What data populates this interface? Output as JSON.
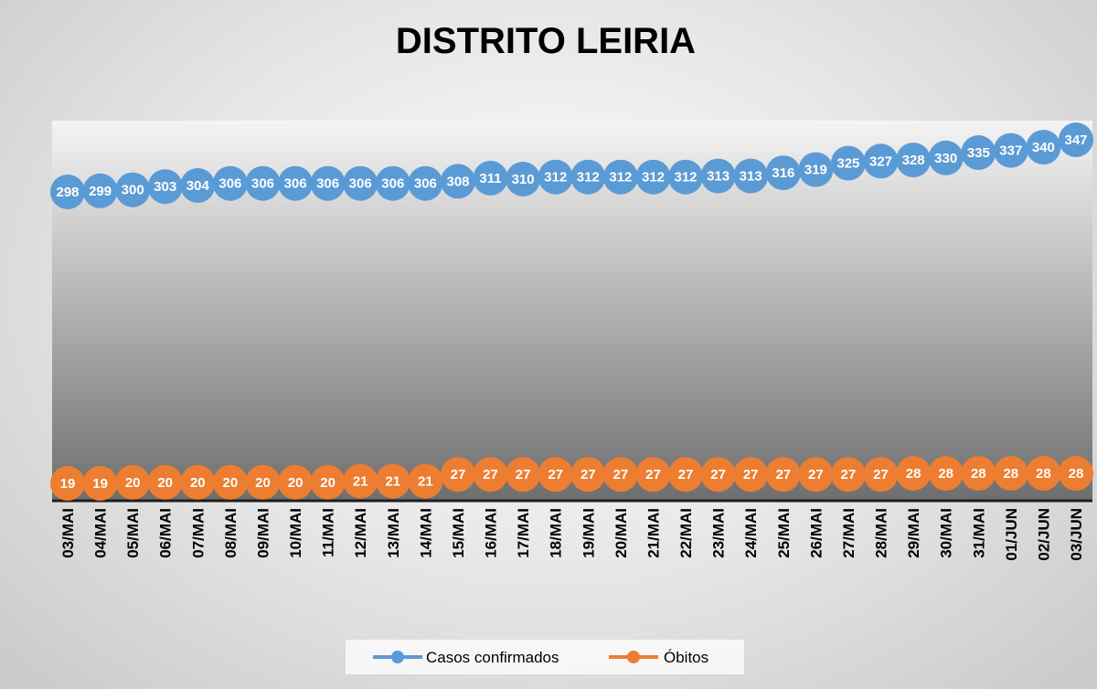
{
  "chart_data": {
    "type": "line",
    "title": "DISTRITO LEIRIA",
    "xlabel": "",
    "ylabel": "",
    "categories": [
      "03/MAI",
      "04/MAI",
      "05/MAI",
      "06/MAI",
      "07/MAI",
      "08/MAI",
      "09/MAI",
      "10/MAI",
      "11/MAI",
      "12/MAI",
      "13/MAI",
      "14/MAI",
      "15/MAI",
      "16/MAI",
      "17/MAI",
      "18/MAI",
      "19/MAI",
      "20/MAI",
      "21/MAI",
      "22/MAI",
      "23/MAI",
      "24/MAI",
      "25/MAI",
      "26/MAI",
      "27/MAI",
      "28/MAI",
      "29/MAI",
      "30/MAI",
      "31/MAI",
      "01/JUN",
      "02/JUN",
      "03/JUN"
    ],
    "series": [
      {
        "name": "Casos confirmados",
        "color": "#5b9bd5",
        "values": [
          298,
          299,
          300,
          303,
          304,
          306,
          306,
          306,
          306,
          306,
          306,
          306,
          308,
          311,
          310,
          312,
          312,
          312,
          312,
          312,
          313,
          313,
          316,
          319,
          325,
          327,
          328,
          330,
          335,
          337,
          340,
          347
        ]
      },
      {
        "name": "Óbitos",
        "color": "#ed7d31",
        "values": [
          19,
          19,
          20,
          20,
          20,
          20,
          20,
          20,
          20,
          21,
          21,
          21,
          27,
          27,
          27,
          27,
          27,
          27,
          27,
          27,
          27,
          27,
          27,
          27,
          27,
          27,
          28,
          28,
          28,
          28,
          28,
          28
        ]
      }
    ],
    "grid": false,
    "legend_position": "bottom",
    "data_labels": true
  }
}
